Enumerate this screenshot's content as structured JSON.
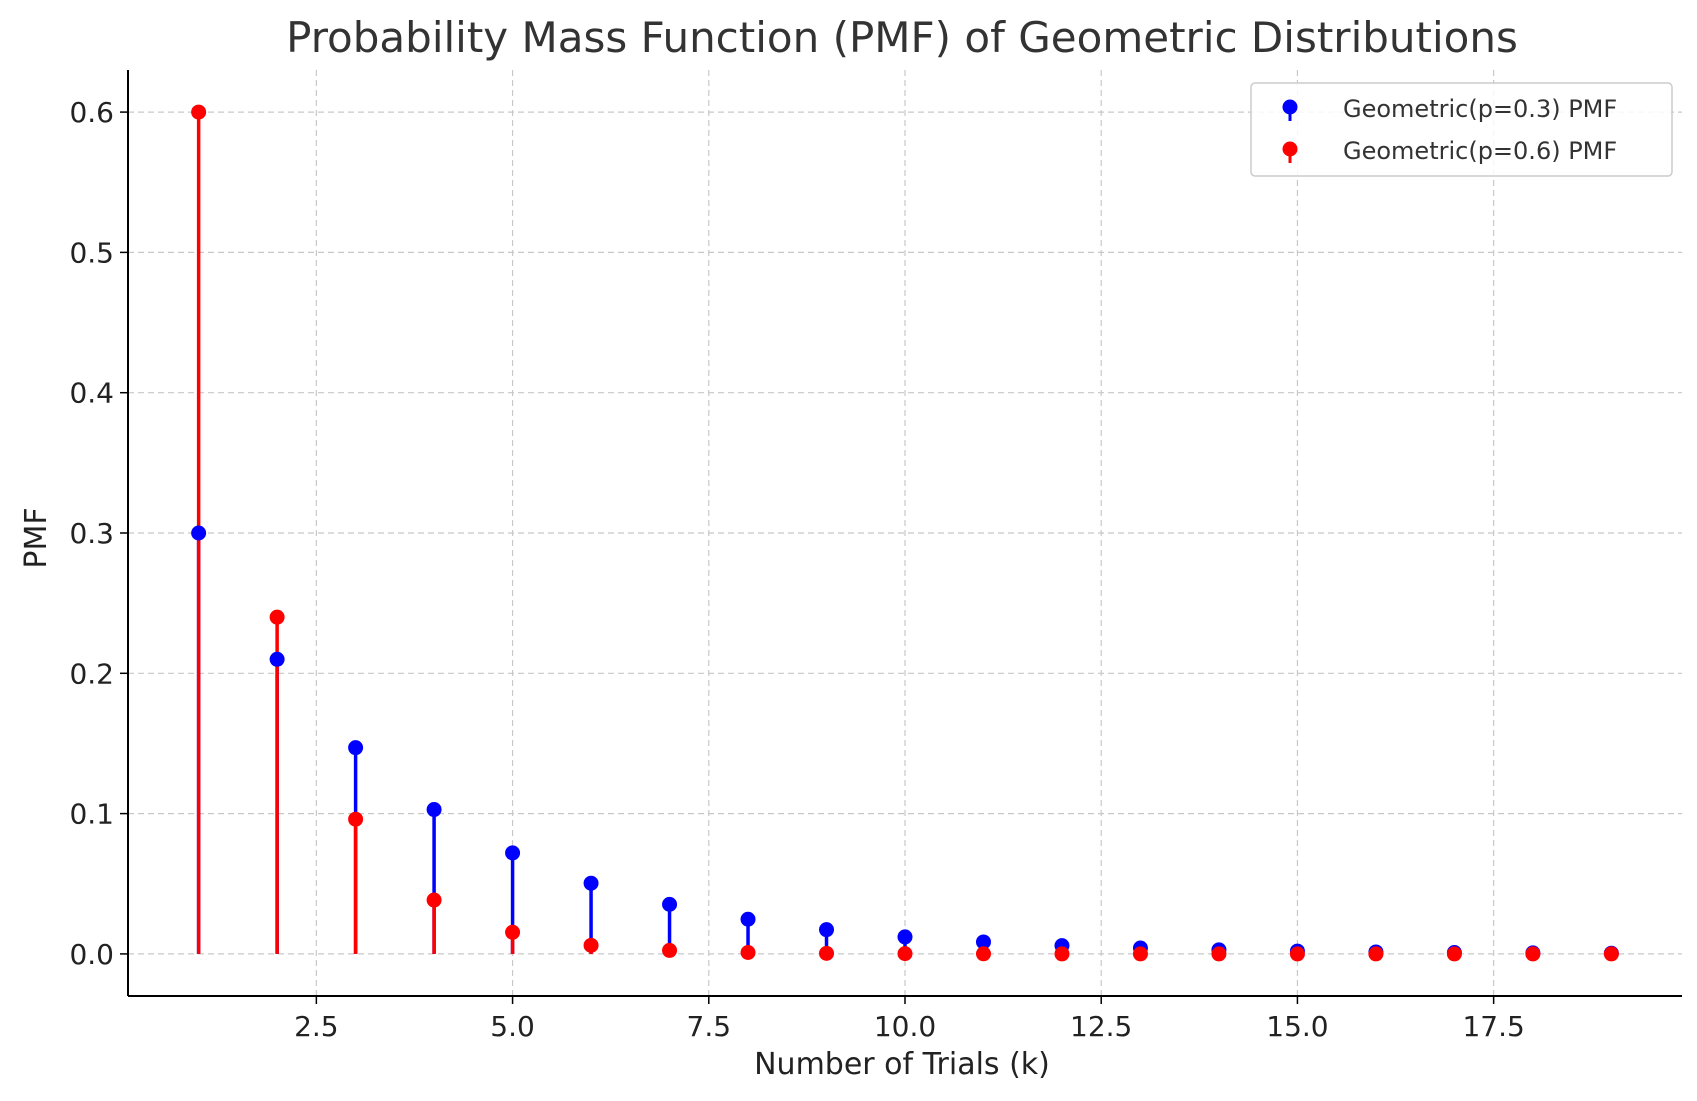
{
  "chart_data": {
    "type": "scatter",
    "title": "Probability Mass Function (PMF) of Geometric Distributions",
    "xlabel": "Number of Trials (k)",
    "ylabel": "PMF",
    "xlim": [
      0.1,
      19.9
    ],
    "ylim": [
      -0.03,
      0.63
    ],
    "x_ticks": [
      2.5,
      5.0,
      7.5,
      10.0,
      12.5,
      15.0,
      17.5
    ],
    "x_tick_labels": [
      "2.5",
      "5.0",
      "7.5",
      "10.0",
      "12.5",
      "15.0",
      "17.5"
    ],
    "y_ticks": [
      0.0,
      0.1,
      0.2,
      0.3,
      0.4,
      0.5,
      0.6
    ],
    "y_tick_labels": [
      "0.0",
      "0.1",
      "0.2",
      "0.3",
      "0.4",
      "0.5",
      "0.6"
    ],
    "grid": true,
    "legend_position": "top-right",
    "x": [
      1,
      2,
      3,
      4,
      5,
      6,
      7,
      8,
      9,
      10,
      11,
      12,
      13,
      14,
      15,
      16,
      17,
      18,
      19
    ],
    "series": [
      {
        "name": "Geometric(p=0.3) PMF",
        "color": "#0000ff",
        "values": [
          0.3,
          0.21,
          0.147,
          0.1029,
          0.072,
          0.0504,
          0.0353,
          0.0247,
          0.0173,
          0.0121,
          0.0085,
          0.0059,
          0.0042,
          0.0029,
          0.002,
          0.0014,
          0.001,
          0.0007,
          0.0005
        ]
      },
      {
        "name": "Geometric(p=0.6) PMF",
        "color": "#ff0000",
        "values": [
          0.6,
          0.24,
          0.096,
          0.0384,
          0.0154,
          0.0061,
          0.0025,
          0.001,
          0.0004,
          0.0002,
          0.0001,
          0.0,
          0.0,
          0.0,
          0.0,
          0.0,
          0.0,
          0.0,
          0.0
        ]
      }
    ]
  }
}
